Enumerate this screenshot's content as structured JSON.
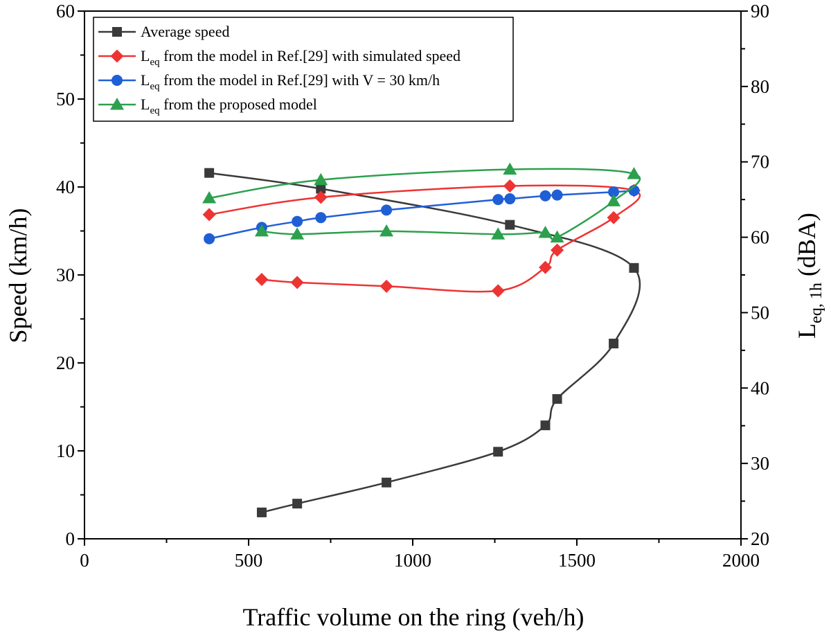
{
  "chart_data": {
    "type": "line",
    "xlabel": "Traffic volume on the ring (veh/h)",
    "ylabel": "Speed (km/h)",
    "y2label_main": "L",
    "y2label_sub": "eq, 1h",
    "y2label_unit": " (dBA)",
    "xlim": [
      0,
      2000
    ],
    "ylim": [
      0,
      60
    ],
    "y2lim": [
      20,
      90
    ],
    "xticks": [
      0,
      500,
      1000,
      1500,
      2000
    ],
    "yticks": [
      0,
      10,
      20,
      30,
      40,
      50,
      60
    ],
    "y2ticks": [
      20,
      30,
      40,
      50,
      60,
      70,
      80,
      90
    ],
    "grid": false,
    "legend_position": "top-left",
    "series": [
      {
        "name": "Average speed",
        "legend_main": "Average speed",
        "legend_sub": "",
        "legend_rest": "",
        "axis": "left",
        "color": "#3a3a3a",
        "marker": "square",
        "x": [
          540,
          648,
          920,
          1260,
          1404,
          1440,
          1612,
          1674,
          1296,
          720,
          380
        ],
        "y": [
          3.0,
          4.0,
          6.4,
          9.9,
          12.9,
          15.9,
          22.2,
          30.8,
          35.7,
          39.8,
          41.6
        ]
      },
      {
        "name": "Leq from the model in Ref.[29] with simulated speed",
        "legend_main": "L",
        "legend_sub": "eq",
        "legend_rest": " from the model in Ref.[29] with simulated speed",
        "axis": "right",
        "color": "#ee3333",
        "marker": "diamond",
        "x": [
          540,
          648,
          920,
          1260,
          1404,
          1440,
          1612,
          1674,
          1296,
          720,
          380
        ],
        "y": [
          54.4,
          54.0,
          53.5,
          52.9,
          56.0,
          58.3,
          62.6,
          66.2,
          66.8,
          65.3,
          63.0
        ]
      },
      {
        "name": "Leq from the model in Ref.[29] with V = 30 km/h",
        "legend_main": "L",
        "legend_sub": "eq",
        "legend_rest": " from the model in Ref.[29] with V = 30 km/h",
        "axis": "right",
        "color": "#1f5fd6",
        "marker": "circle",
        "x": [
          380,
          540,
          648,
          720,
          920,
          1260,
          1296,
          1404,
          1440,
          1612,
          1674
        ],
        "y": [
          59.8,
          61.3,
          62.1,
          62.6,
          63.6,
          65.0,
          65.1,
          65.5,
          65.6,
          66.0,
          66.2
        ]
      },
      {
        "name": "Leq from the proposed model",
        "legend_main": "L",
        "legend_sub": "eq",
        "legend_rest": " from the proposed model",
        "axis": "right",
        "color": "#2ca04c",
        "marker": "triangle",
        "x": [
          540,
          648,
          920,
          1260,
          1404,
          1440,
          1612,
          1674,
          1296,
          720,
          380
        ],
        "y": [
          60.8,
          60.4,
          60.8,
          60.4,
          60.6,
          60.0,
          64.8,
          68.4,
          69.0,
          67.6,
          65.2
        ]
      }
    ]
  }
}
